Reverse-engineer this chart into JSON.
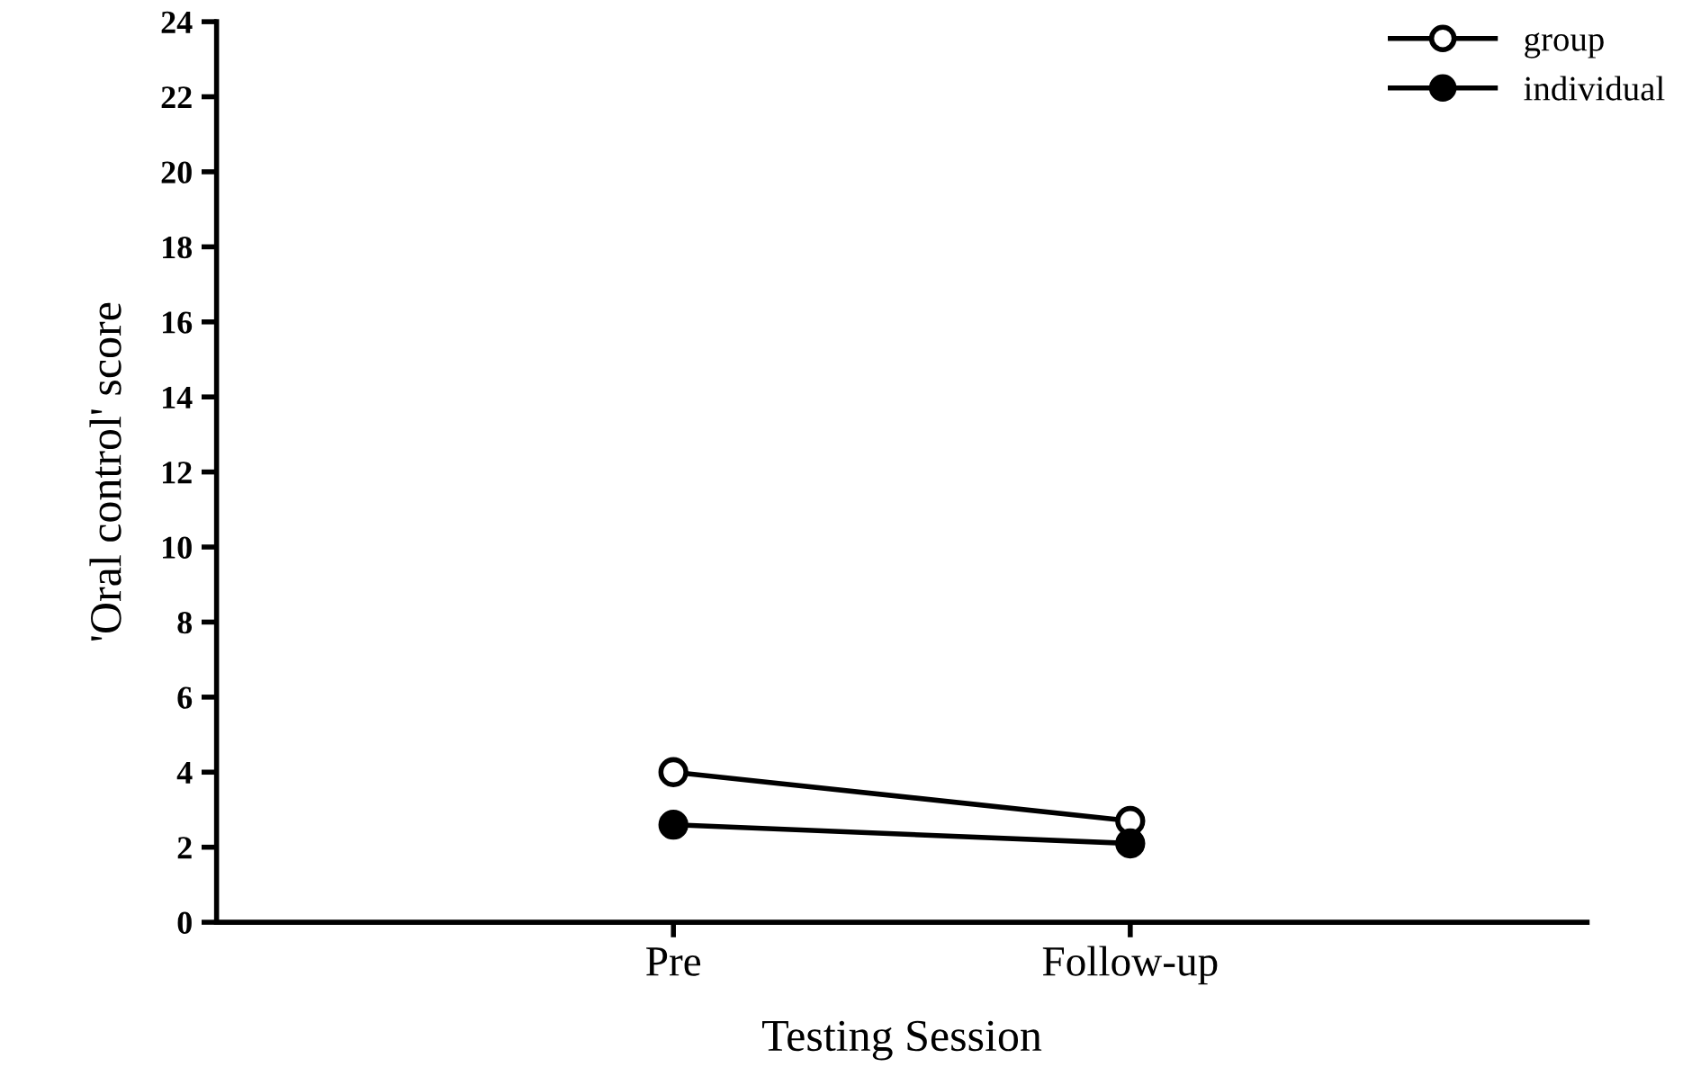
{
  "chart_data": {
    "type": "line",
    "xlabel": "Testing Session",
    "ylabel": "'Oral control' score",
    "categories": [
      "Pre",
      "Follow-up"
    ],
    "series": [
      {
        "name": "group",
        "color": "#000000",
        "values": [
          4.0,
          2.7
        ],
        "marker": "circle"
      },
      {
        "name": "individual",
        "color": "#000000",
        "values": [
          2.6,
          2.1
        ],
        "marker": "circle"
      }
    ],
    "ylim": [
      0,
      24
    ],
    "yticks": [
      0,
      2,
      4,
      6,
      8,
      10,
      12,
      14,
      16,
      18,
      20,
      22,
      24
    ],
    "grid": false,
    "legend": "top right"
  }
}
